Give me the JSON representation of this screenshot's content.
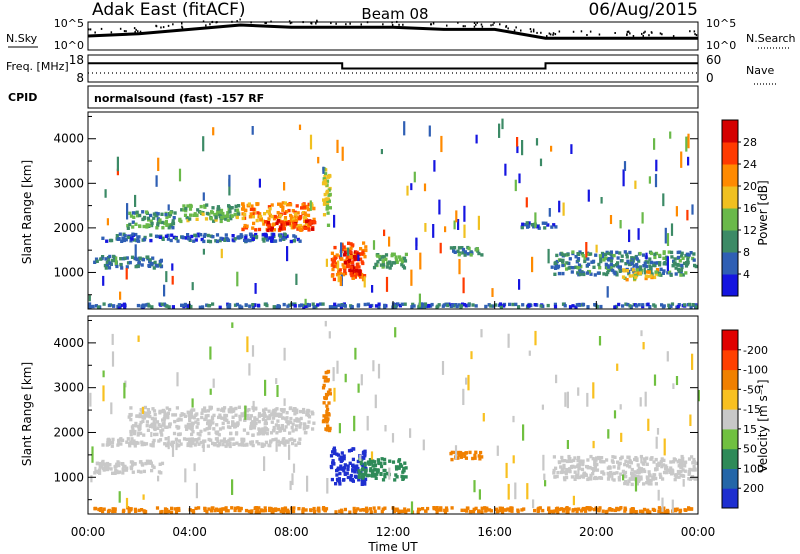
{
  "header": {
    "site": "Adak East (fitACF)",
    "beam": "Beam 08",
    "date": "06/Aug/2015"
  },
  "colors": {
    "power_scale": [
      "#1515e0",
      "#2f5fb4",
      "#3c8a66",
      "#6ab94a",
      "#f0c020",
      "#ff8a00",
      "#ff3a00",
      "#d40000"
    ],
    "velocity_scale": [
      "#1e2fd0",
      "#2466a8",
      "#2e8a58",
      "#70c040",
      "#c8c8c8",
      "#f8c020",
      "#f08000",
      "#ff4000",
      "#e00000"
    ],
    "noise": "#000000",
    "gate": "#9a9a9a"
  },
  "chart_data": [
    {
      "type": "line",
      "panel": "noise",
      "left_label": "N.Sky",
      "right_label": "N.Search",
      "left_ticks": [
        "10^5",
        "10^0"
      ],
      "right_ticks": [
        "10^5",
        "10^0"
      ],
      "series": [
        {
          "name": "N.Sky",
          "x": [
            0,
            2,
            4,
            6,
            8,
            10,
            12,
            14,
            16,
            18,
            20,
            22,
            24
          ],
          "y": [
            0.5,
            0.6,
            0.8,
            1.0,
            0.9,
            0.9,
            0.9,
            0.8,
            0.8,
            0.4,
            0.4,
            0.4,
            0.4
          ]
        }
      ]
    },
    {
      "type": "line",
      "panel": "frequency",
      "left_label": "Freq. [MHz]",
      "right_label": "Nave",
      "left_ticks": [
        18,
        8
      ],
      "right_ticks": [
        60,
        0
      ],
      "series": [
        {
          "name": "Freq.",
          "x": [
            0,
            10,
            10,
            18,
            18,
            24
          ],
          "y": [
            15.5,
            15.5,
            13.0,
            13.0,
            15.5,
            15.5
          ]
        },
        {
          "name": "Nave",
          "x": [
            0,
            24
          ],
          "y": [
            13,
            13
          ]
        }
      ]
    },
    {
      "type": "text",
      "panel": "cpid",
      "label": "CPID",
      "text": "normalsound (fast) -157 RF"
    },
    {
      "type": "heatmap",
      "panel": "power",
      "ylabel": "Slant Range [km]",
      "yticks": [
        1000,
        2000,
        3000,
        4000
      ],
      "ylim": [
        180,
        4600
      ],
      "xlim": [
        0,
        24
      ],
      "colorbar": {
        "label": "Power [dB]",
        "ticks": [
          "4",
          "8",
          "12",
          "16",
          "20",
          "24",
          "28"
        ]
      },
      "regions": [
        {
          "t0": 1.5,
          "t1": 3.5,
          "r0": 1950,
          "r1": 2400,
          "v": 11
        },
        {
          "t0": 3.5,
          "t1": 6.0,
          "r0": 2100,
          "r1": 2550,
          "v": 13
        },
        {
          "t0": 6.0,
          "t1": 9.0,
          "r0": 1900,
          "r1": 2600,
          "v": 22
        },
        {
          "t0": 7.0,
          "t1": 9.0,
          "r0": 1900,
          "r1": 2200,
          "v": 27
        },
        {
          "t0": 0.2,
          "t1": 3.0,
          "r0": 1050,
          "r1": 1400,
          "v": 8
        },
        {
          "t0": 0.5,
          "t1": 8.5,
          "r0": 1650,
          "r1": 1900,
          "v": 6
        },
        {
          "t0": 9.2,
          "t1": 9.6,
          "r0": 2000,
          "r1": 3400,
          "v": 16
        },
        {
          "t0": 9.5,
          "t1": 11.0,
          "r0": 800,
          "r1": 1700,
          "v": 24
        },
        {
          "t0": 10.0,
          "t1": 10.8,
          "r0": 900,
          "r1": 1500,
          "v": 28
        },
        {
          "t0": 11.2,
          "t1": 12.6,
          "r0": 1050,
          "r1": 1450,
          "v": 12
        },
        {
          "t0": 14.2,
          "t1": 15.6,
          "r0": 1350,
          "r1": 1600,
          "v": 9
        },
        {
          "t0": 17.0,
          "t1": 18.5,
          "r0": 1950,
          "r1": 2150,
          "v": 6
        },
        {
          "t0": 18.2,
          "t1": 24.0,
          "r0": 900,
          "r1": 1500,
          "v": 9
        },
        {
          "t0": 21.0,
          "t1": 22.5,
          "r0": 800,
          "r1": 1100,
          "v": 18
        },
        {
          "t0": 0.0,
          "t1": 24.0,
          "r0": 180,
          "r1": 330,
          "v": 6
        }
      ]
    },
    {
      "type": "heatmap",
      "panel": "velocity",
      "ylabel": "Slant Range [km]",
      "yticks": [
        1000,
        2000,
        3000,
        4000
      ],
      "ylim": [
        180,
        4600
      ],
      "xlim": [
        0,
        24
      ],
      "xticks": [
        "00:00",
        "04:00",
        "08:00",
        "12:00",
        "16:00",
        "20:00",
        "00:00"
      ],
      "xlabel": "Time UT",
      "colorbar": {
        "label": "Velocity [m s⁻¹]",
        "ticks": [
          "200",
          "100",
          "50",
          "15",
          "-15",
          "-50",
          "-100",
          "-200"
        ]
      },
      "regions": [
        {
          "t0": 1.5,
          "t1": 9.0,
          "r0": 1900,
          "r1": 2600,
          "v": 0
        },
        {
          "t0": 0.2,
          "t1": 3.0,
          "r0": 1050,
          "r1": 1400,
          "v": 0
        },
        {
          "t0": 0.5,
          "t1": 8.5,
          "r0": 1650,
          "r1": 1900,
          "v": 0
        },
        {
          "t0": 9.2,
          "t1": 9.6,
          "r0": 2000,
          "r1": 3400,
          "v": -60
        },
        {
          "t0": 9.5,
          "t1": 11.0,
          "r0": 800,
          "r1": 1700,
          "v": 180
        },
        {
          "t0": 10.6,
          "t1": 12.6,
          "r0": 900,
          "r1": 1450,
          "v": 60
        },
        {
          "t0": 14.2,
          "t1": 15.6,
          "r0": 1350,
          "r1": 1600,
          "v": -40
        },
        {
          "t0": 18.2,
          "t1": 24.0,
          "r0": 900,
          "r1": 1500,
          "v": 0
        },
        {
          "t0": 21.0,
          "t1": 22.5,
          "r0": 800,
          "r1": 1100,
          "v": 0
        },
        {
          "t0": 0.0,
          "t1": 24.0,
          "r0": 180,
          "r1": 360,
          "v": -40
        }
      ]
    }
  ]
}
